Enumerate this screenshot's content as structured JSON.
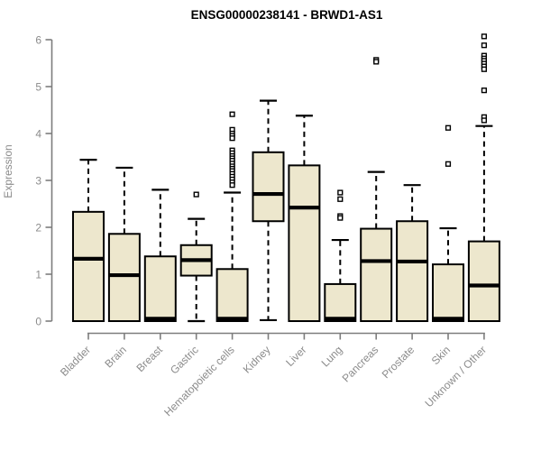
{
  "page": {
    "background": "#ffffff"
  },
  "chart_data": {
    "type": "boxplot",
    "title": "ENSG00000238141 - BRWD1-AS1",
    "ylabel": "Expression",
    "xlabel": "",
    "ylim": [
      0,
      6
    ],
    "y_ticks": [
      0,
      1,
      2,
      3,
      4,
      5,
      6
    ],
    "grid": false,
    "legend": false,
    "colors": {
      "box_fill": "#ede7cd",
      "box_stroke": "#000000",
      "median": "#000000",
      "whisker": "#000000",
      "outlier_stroke": "#000000",
      "axis_line": "#7d7d7d",
      "tick_label": "#8b8b8b",
      "title": "#000000"
    },
    "categories": [
      "Bladder",
      "Brain",
      "Breast",
      "Gastric",
      "Hematopoietic cells",
      "Kidney",
      "Liver",
      "Lung",
      "Pancreas",
      "Prostate",
      "Skin",
      "Unknown / Other"
    ],
    "series": [
      {
        "category": "Bladder",
        "q1": 0,
        "median": 1.33,
        "q3": 2.33,
        "whisker_low": 0,
        "whisker_high": 3.44,
        "outliers": []
      },
      {
        "category": "Brain",
        "q1": 0,
        "median": 0.98,
        "q3": 1.86,
        "whisker_low": 0,
        "whisker_high": 3.27,
        "outliers": []
      },
      {
        "category": "Breast",
        "q1": 0,
        "median": 0.05,
        "q3": 1.38,
        "whisker_low": 0,
        "whisker_high": 2.8,
        "outliers": []
      },
      {
        "category": "Gastric",
        "q1": 0.97,
        "median": 1.3,
        "q3": 1.62,
        "whisker_low": 0,
        "whisker_high": 2.18,
        "outliers": [
          2.7
        ]
      },
      {
        "category": "Hematopoietic cells",
        "q1": 0,
        "median": 0.05,
        "q3": 1.11,
        "whisker_low": 0,
        "whisker_high": 2.74,
        "outliers": [
          4.41,
          4.08,
          4.0,
          3.95,
          3.9,
          3.64,
          3.58,
          3.52,
          3.47,
          3.42,
          3.36,
          3.3,
          3.25,
          3.2,
          3.14,
          3.08,
          3.02,
          2.96,
          2.9
        ]
      },
      {
        "category": "Kidney",
        "q1": 2.13,
        "median": 2.71,
        "q3": 3.6,
        "whisker_low": 0.02,
        "whisker_high": 4.7,
        "outliers": []
      },
      {
        "category": "Liver",
        "q1": 0,
        "median": 2.42,
        "q3": 3.32,
        "whisker_low": 0,
        "whisker_high": 4.38,
        "outliers": []
      },
      {
        "category": "Lung",
        "q1": 0,
        "median": 0.05,
        "q3": 0.79,
        "whisker_low": 0,
        "whisker_high": 1.73,
        "outliers": [
          2.74,
          2.6,
          2.24,
          2.2
        ]
      },
      {
        "category": "Pancreas",
        "q1": 0,
        "median": 1.28,
        "q3": 1.97,
        "whisker_low": 0,
        "whisker_high": 3.18,
        "outliers": [
          5.57,
          5.53
        ]
      },
      {
        "category": "Prostate",
        "q1": 0,
        "median": 1.27,
        "q3": 2.13,
        "whisker_low": 0,
        "whisker_high": 2.9,
        "outliers": []
      },
      {
        "category": "Skin",
        "q1": 0,
        "median": 0.05,
        "q3": 1.21,
        "whisker_low": 0,
        "whisker_high": 1.98,
        "outliers": [
          4.12,
          3.35
        ]
      },
      {
        "category": "Unknown / Other",
        "q1": 0,
        "median": 0.76,
        "q3": 1.7,
        "whisker_low": 0,
        "whisker_high": 4.16,
        "outliers": [
          6.07,
          5.88,
          5.66,
          5.6,
          5.55,
          5.49,
          5.43,
          5.37,
          4.92,
          4.35,
          4.28
        ]
      }
    ]
  }
}
